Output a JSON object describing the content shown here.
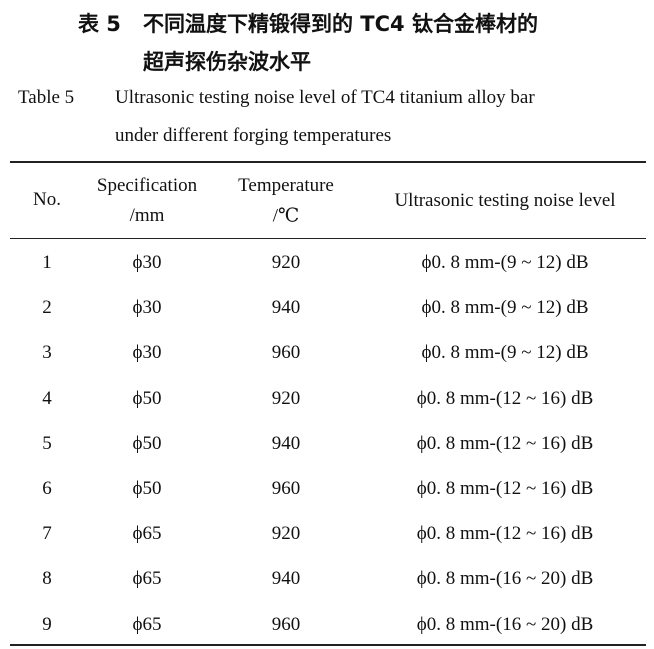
{
  "caption_cn": {
    "label": "表 5",
    "line1": "不同温度下精锻得到的 TC4 钛合金棒材的",
    "line2": "超声探伤杂波水平"
  },
  "caption_en": {
    "label": "Table 5",
    "line1": "Ultrasonic testing noise level of TC4 titanium alloy bar",
    "line2": "under different forging temperatures"
  },
  "table": {
    "headers": [
      {
        "line1": "No.",
        "line2": ""
      },
      {
        "line1": "Specification",
        "line2": "/mm"
      },
      {
        "line1": "Temperature",
        "line2": "/℃"
      },
      {
        "line1": "Ultrasonic testing noise level",
        "line2": ""
      }
    ],
    "rows": [
      [
        "1",
        "ϕ30",
        "920",
        "ϕ0. 8 mm-(9 ~ 12) dB"
      ],
      [
        "2",
        "ϕ30",
        "940",
        "ϕ0. 8 mm-(9 ~ 12) dB"
      ],
      [
        "3",
        "ϕ30",
        "960",
        "ϕ0. 8 mm-(9 ~ 12) dB"
      ],
      [
        "4",
        "ϕ50",
        "920",
        "ϕ0. 8 mm-(12 ~ 16) dB"
      ],
      [
        "5",
        "ϕ50",
        "940",
        "ϕ0. 8 mm-(12 ~ 16) dB"
      ],
      [
        "6",
        "ϕ50",
        "960",
        "ϕ0. 8 mm-(12 ~ 16) dB"
      ],
      [
        "7",
        "ϕ65",
        "920",
        "ϕ0. 8 mm-(12 ~ 16) dB"
      ],
      [
        "8",
        "ϕ65",
        "940",
        "ϕ0. 8 mm-(16 ~ 20) dB"
      ],
      [
        "9",
        "ϕ65",
        "960",
        "ϕ0. 8 mm-(16 ~ 20) dB"
      ]
    ]
  }
}
